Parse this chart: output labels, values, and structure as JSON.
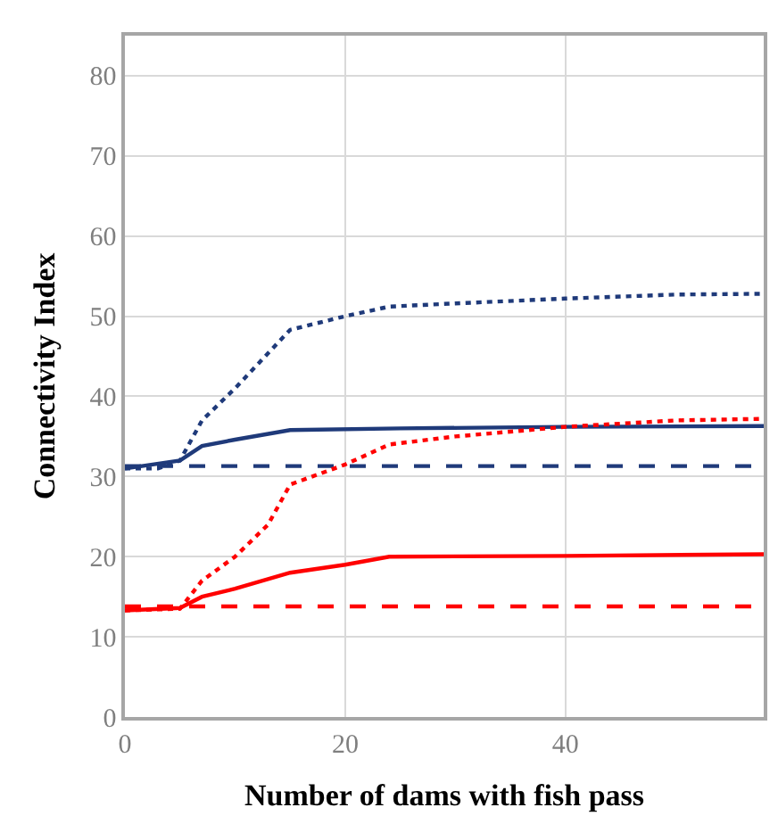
{
  "chart_data": {
    "type": "line",
    "xlabel": "Number of dams with fish pass",
    "ylabel": "Connectivity Index",
    "xlim": [
      0,
      58
    ],
    "xticks": [
      0,
      20,
      40
    ],
    "ylim": [
      0,
      85
    ],
    "yticks": [
      0,
      10,
      20,
      30,
      40,
      50,
      60,
      70,
      80
    ],
    "grid": true,
    "series": [
      {
        "color": "#1f3a7a",
        "line_style": "dotted",
        "x": [
          0,
          3,
          5,
          7,
          10,
          15,
          20,
          24,
          30,
          40,
          50,
          58
        ],
        "values": [
          31,
          31,
          32,
          37,
          41,
          48.3,
          50,
          51.2,
          51.6,
          52.2,
          52.7,
          52.8
        ]
      },
      {
        "color": "#1f3a7a",
        "line_style": "solid",
        "x": [
          0,
          5,
          7,
          10,
          15,
          25,
          40,
          58
        ],
        "values": [
          31,
          32,
          33.8,
          34.6,
          35.8,
          36,
          36.2,
          36.3
        ]
      },
      {
        "color": "#1f3a7a",
        "line_style": "dashed",
        "x": [
          0,
          58
        ],
        "values": [
          31.3,
          31.3
        ]
      },
      {
        "color": "#ff0000",
        "line_style": "dotted",
        "x": [
          0,
          5,
          7,
          10,
          13,
          15,
          20,
          24,
          30,
          40,
          50,
          58
        ],
        "values": [
          13.3,
          13.5,
          17,
          20,
          24,
          29,
          31.5,
          34,
          35,
          36.2,
          37,
          37.2
        ]
      },
      {
        "color": "#ff0000",
        "line_style": "solid",
        "x": [
          0,
          5,
          7,
          10,
          15,
          20,
          24,
          40,
          58
        ],
        "values": [
          13.3,
          13.6,
          15,
          16,
          18,
          19,
          20,
          20.1,
          20.3
        ]
      },
      {
        "color": "#ff0000",
        "line_style": "dashed",
        "x": [
          0,
          58
        ],
        "values": [
          13.8,
          13.8
        ]
      }
    ]
  }
}
